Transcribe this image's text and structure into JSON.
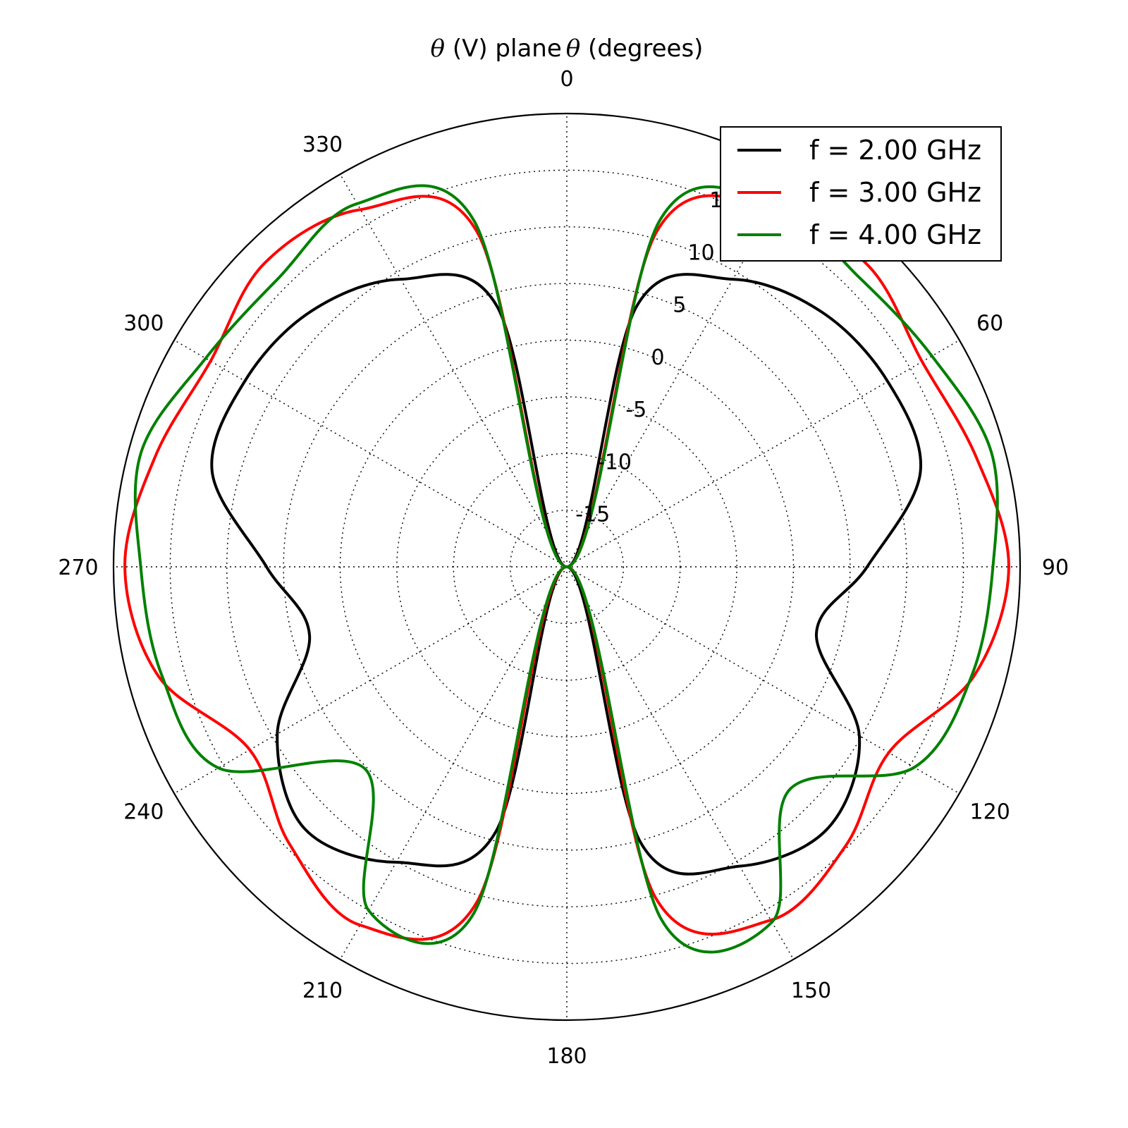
{
  "chart_data": {
    "type": "line",
    "projection": "polar",
    "title_symbol": "θ",
    "title_text_1": " (V) plane",
    "title_text_2": " (degrees)",
    "theta_zero": "top",
    "theta_direction": "clockwise",
    "angle_ticks": [
      "0",
      "30",
      "60",
      "90",
      "120",
      "150",
      "180",
      "210",
      "240",
      "270",
      "300",
      "330"
    ],
    "r_ticks": [
      "-15",
      "-10",
      "-5",
      "0",
      "5",
      "10",
      "15",
      "20"
    ],
    "rlim": [
      -20,
      20
    ],
    "grid": true,
    "legend_position": "top-right",
    "x": [
      0,
      15,
      30,
      45,
      60,
      75,
      90,
      105,
      120,
      135,
      150,
      165,
      180,
      195,
      210,
      225,
      240,
      255,
      270,
      285,
      300,
      315,
      330,
      345,
      360
    ],
    "series": [
      {
        "name": "f = 2.00 GHz",
        "color": "#000000",
        "values": [
          -20,
          3.8,
          9.3,
          11.8,
          12.7,
          12.3,
          6.5,
          2.8,
          9.8,
          12.6,
          10.5,
          5.2,
          -20,
          4.2,
          10.1,
          12.7,
          9.5,
          3.5,
          6.5,
          12.4,
          12.8,
          11.9,
          9.3,
          3.8,
          -20
        ]
      },
      {
        "name": "f = 3.00 GHz",
        "color": "#ff0000",
        "values": [
          -20,
          10.6,
          16.5,
          17.6,
          16.2,
          17.4,
          19.0,
          17.2,
          12.8,
          14.8,
          16.0,
          10.2,
          -20,
          10.6,
          16.5,
          14.6,
          12.3,
          17.3,
          19.0,
          17.6,
          16.3,
          17.8,
          16.4,
          10.6,
          -20
        ]
      },
      {
        "name": "f = 4.00 GHz",
        "color": "#008000",
        "values": [
          -20,
          11.6,
          16.8,
          16.3,
          17.2,
          18.8,
          17.6,
          17.0,
          15.4,
          7.8,
          16.2,
          12.2,
          -20,
          11.6,
          15.0,
          5.2,
          15.5,
          17.0,
          17.6,
          18.9,
          16.8,
          16.0,
          17.0,
          11.6,
          -20
        ]
      }
    ]
  }
}
